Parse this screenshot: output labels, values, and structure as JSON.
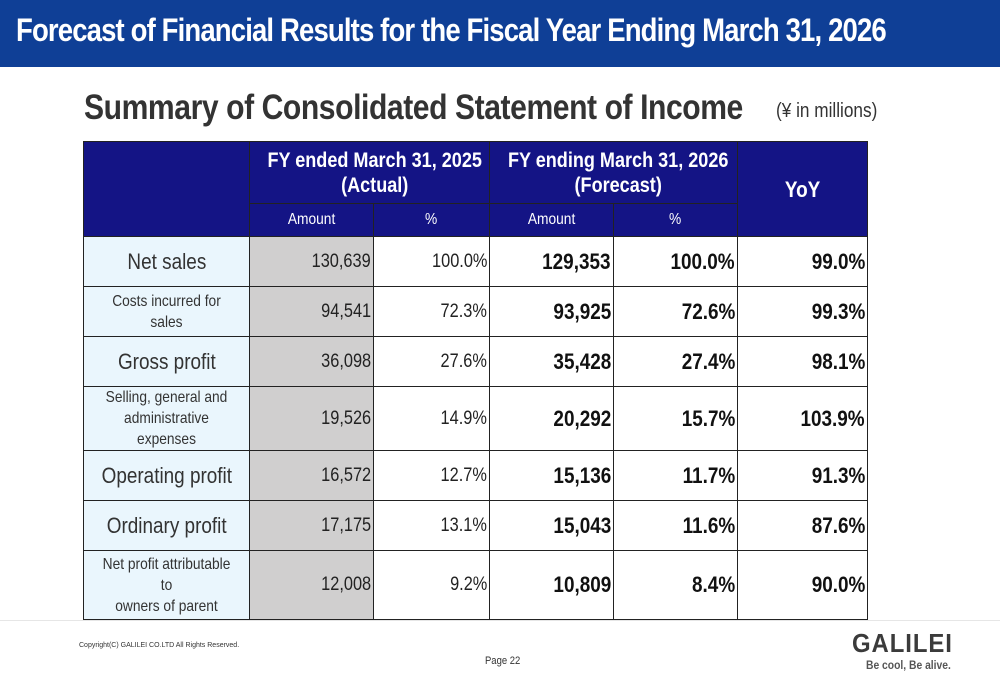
{
  "header": {
    "title": "Forecast of Financial Results for the Fiscal Year Ending March 31, 2026"
  },
  "section": {
    "title": "Summary of Consolidated Statement of Income",
    "unit_note": "(¥ in millions)"
  },
  "table": {
    "group_headers": {
      "actual_line1": "FY ended March 31, 2025",
      "actual_line2": "(Actual)",
      "forecast_line1": "FY ending March 31, 2026",
      "forecast_line2": "(Forecast)",
      "yoy": "YoY"
    },
    "sub_headers": {
      "actual_amount": "Amount",
      "actual_pct": "%",
      "forecast_amount": "Amount",
      "forecast_pct": "%"
    },
    "rows": [
      {
        "label": "Net sales",
        "actual_amount": "130,639",
        "actual_pct": "100.0%",
        "forecast_amount": "129,353",
        "forecast_pct": "100.0%",
        "yoy": "99.0%"
      },
      {
        "label": "Costs incurred for sales",
        "actual_amount": "94,541",
        "actual_pct": "72.3%",
        "forecast_amount": "93,925",
        "forecast_pct": "72.6%",
        "yoy": "99.3%"
      },
      {
        "label": "Gross profit",
        "actual_amount": "36,098",
        "actual_pct": "27.6%",
        "forecast_amount": "35,428",
        "forecast_pct": "27.4%",
        "yoy": "98.1%"
      },
      {
        "label_line1": "Selling, general and",
        "label_line2": "administrative expenses",
        "actual_amount": "19,526",
        "actual_pct": "14.9%",
        "forecast_amount": "20,292",
        "forecast_pct": "15.7%",
        "yoy": "103.9%"
      },
      {
        "label": "Operating profit",
        "actual_amount": "16,572",
        "actual_pct": "12.7%",
        "forecast_amount": "15,136",
        "forecast_pct": "11.7%",
        "yoy": "91.3%"
      },
      {
        "label": "Ordinary profit",
        "actual_amount": "17,175",
        "actual_pct": "13.1%",
        "forecast_amount": "15,043",
        "forecast_pct": "11.6%",
        "yoy": "87.6%"
      },
      {
        "label_line1": "Net profit attributable to",
        "label_line2": "owners of parent",
        "actual_amount": "12,008",
        "actual_pct": "9.2%",
        "forecast_amount": "10,809",
        "forecast_pct": "8.4%",
        "yoy": "90.0%"
      }
    ]
  },
  "footer": {
    "copyright": "Copyright(C) GALILEI CO.LTD All Rights Reserved.",
    "page": "Page 22",
    "logo_name": "GALILEI",
    "logo_tagline": "Be cool, Be alive."
  },
  "colors": {
    "title_bar": "#0f3f96",
    "table_header": "#141485",
    "label_cell": "#eaf6fd",
    "actual_amount_cell": "#d0cfcf"
  }
}
